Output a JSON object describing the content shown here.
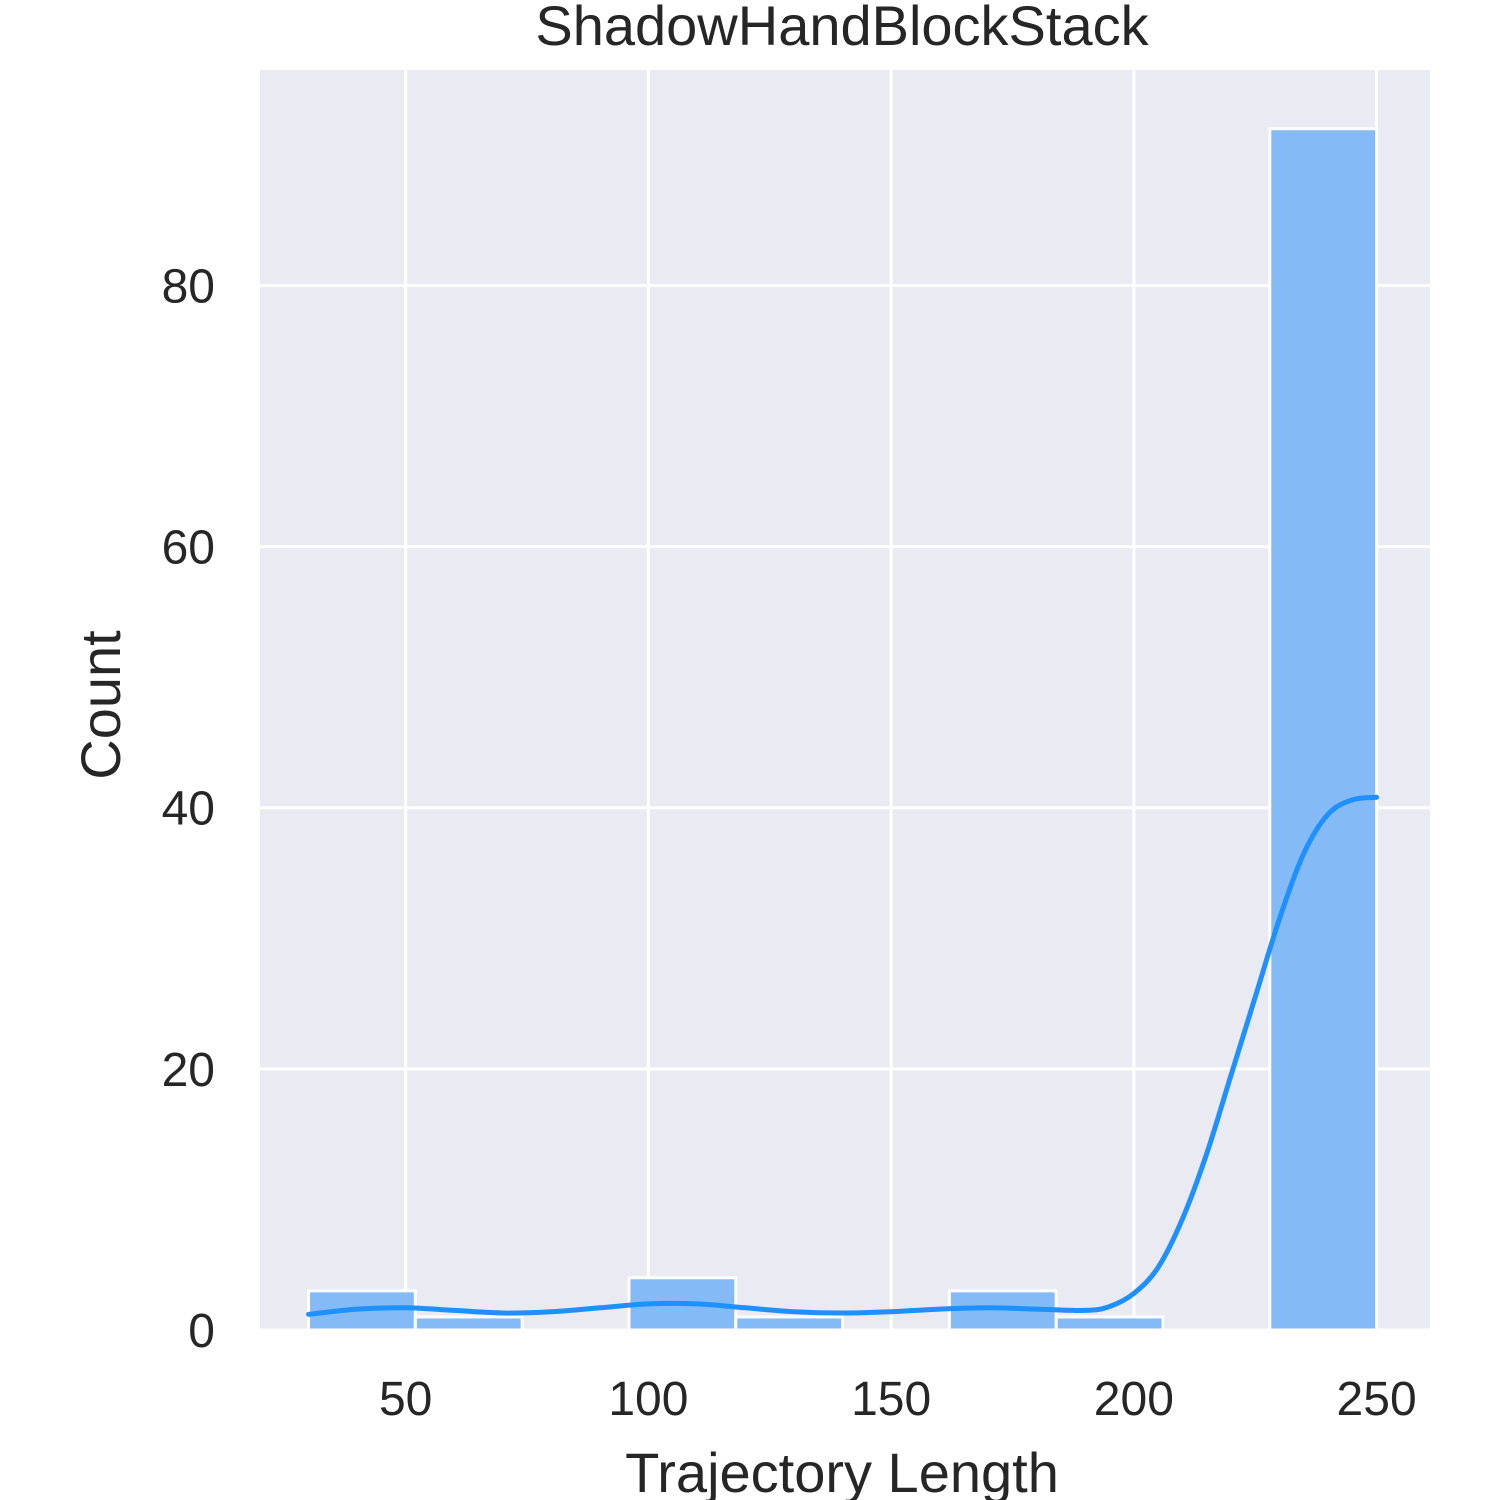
{
  "chart_data": {
    "type": "histogram",
    "title": "ShadowHandBlockStack",
    "xlabel": "Trajectory Length",
    "ylabel": "Count",
    "xlim": [
      20,
      261
    ],
    "ylim": [
      0,
      96.5
    ],
    "xticks": [
      50,
      100,
      150,
      200,
      250
    ],
    "yticks": [
      0,
      20,
      40,
      60,
      80
    ],
    "grid": true,
    "bins": [
      {
        "x0": 30,
        "x1": 52,
        "count": 3
      },
      {
        "x0": 52,
        "x1": 74,
        "count": 1
      },
      {
        "x0": 74,
        "x1": 96,
        "count": 0
      },
      {
        "x0": 96,
        "x1": 118,
        "count": 4
      },
      {
        "x0": 118,
        "x1": 140,
        "count": 1
      },
      {
        "x0": 140,
        "x1": 162,
        "count": 0
      },
      {
        "x0": 162,
        "x1": 184,
        "count": 3
      },
      {
        "x0": 184,
        "x1": 206,
        "count": 1
      },
      {
        "x0": 206,
        "x1": 228,
        "count": 0
      },
      {
        "x0": 228,
        "x1": 250,
        "count": 92
      }
    ],
    "kde": {
      "x": [
        30,
        40,
        50,
        60,
        70,
        80,
        90,
        100,
        110,
        120,
        130,
        140,
        150,
        160,
        170,
        180,
        190,
        195,
        200,
        205,
        210,
        215,
        220,
        225,
        230,
        235,
        240,
        245,
        250
      ],
      "y": [
        1.2,
        1.6,
        1.7,
        1.5,
        1.3,
        1.4,
        1.7,
        2.0,
        2.0,
        1.7,
        1.4,
        1.3,
        1.4,
        1.6,
        1.7,
        1.6,
        1.5,
        1.8,
        2.8,
        4.8,
        8.5,
        13.5,
        19.5,
        25.5,
        31.5,
        36.5,
        39.5,
        40.6,
        40.8
      ]
    },
    "colors": {
      "bar_fill": "#84bbf7",
      "bar_edge": "#ffffff",
      "kde_line": "#1e90ff",
      "plot_bg": "#eaeaf2",
      "grid": "#ffffff"
    }
  }
}
